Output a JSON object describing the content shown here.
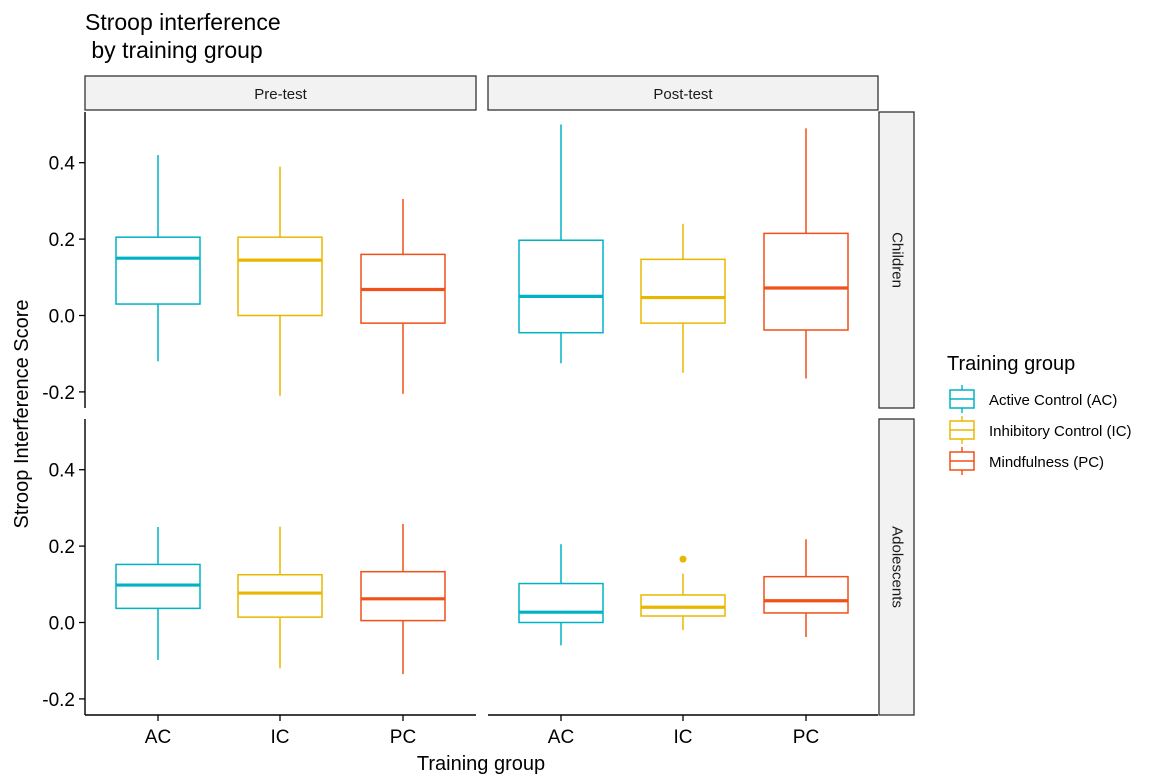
{
  "chart_data": {
    "type": "boxplot",
    "title": "Stroop interference\n by training group",
    "xlabel": "Training group",
    "ylabel": "Stroop Interference Score",
    "ylim": [
      -0.235,
      0.535
    ],
    "yticks": [
      -0.2,
      0.0,
      0.2,
      0.4
    ],
    "ytick_labels": [
      "-0.2",
      "0.0",
      "0.2",
      "0.4"
    ],
    "categories": [
      "AC",
      "IC",
      "PC"
    ],
    "columns": [
      "Pre-test",
      "Post-test"
    ],
    "rows": [
      "Children",
      "Adolescents"
    ],
    "legend": {
      "title": "Training group",
      "position": "right",
      "entries": [
        "Active Control (AC)",
        "Inhibitory Control (IC)",
        "Mindfulness (PC)"
      ]
    },
    "colors": {
      "AC": "#00b2c4",
      "IC": "#e8b800",
      "PC": "#f05019"
    },
    "grid": false,
    "panels": [
      {
        "row": "Children",
        "column": "Pre-test",
        "boxes": [
          {
            "group": "AC",
            "min": -0.12,
            "q1": 0.03,
            "median": 0.15,
            "q3": 0.205,
            "max": 0.42,
            "outliers": []
          },
          {
            "group": "IC",
            "min": -0.21,
            "q1": 0.0,
            "median": 0.145,
            "q3": 0.205,
            "max": 0.39,
            "outliers": []
          },
          {
            "group": "PC",
            "min": -0.205,
            "q1": -0.02,
            "median": 0.068,
            "q3": 0.16,
            "max": 0.305,
            "outliers": []
          }
        ]
      },
      {
        "row": "Children",
        "column": "Post-test",
        "boxes": [
          {
            "group": "AC",
            "min": -0.125,
            "q1": -0.045,
            "median": 0.05,
            "q3": 0.197,
            "max": 0.5,
            "outliers": []
          },
          {
            "group": "IC",
            "min": -0.15,
            "q1": -0.02,
            "median": 0.047,
            "q3": 0.147,
            "max": 0.24,
            "outliers": []
          },
          {
            "group": "PC",
            "min": -0.165,
            "q1": -0.038,
            "median": 0.072,
            "q3": 0.215,
            "max": 0.49,
            "outliers": []
          }
        ]
      },
      {
        "row": "Adolescents",
        "column": "Pre-test",
        "boxes": [
          {
            "group": "AC",
            "min": -0.098,
            "q1": 0.037,
            "median": 0.098,
            "q3": 0.152,
            "max": 0.25,
            "outliers": []
          },
          {
            "group": "IC",
            "min": -0.12,
            "q1": 0.014,
            "median": 0.077,
            "q3": 0.125,
            "max": 0.251,
            "outliers": []
          },
          {
            "group": "PC",
            "min": -0.135,
            "q1": 0.005,
            "median": 0.062,
            "q3": 0.133,
            "max": 0.258,
            "outliers": []
          }
        ]
      },
      {
        "row": "Adolescents",
        "column": "Post-test",
        "boxes": [
          {
            "group": "AC",
            "min": -0.06,
            "q1": 0.0,
            "median": 0.027,
            "q3": 0.102,
            "max": 0.205,
            "outliers": []
          },
          {
            "group": "IC",
            "min": -0.02,
            "q1": 0.017,
            "median": 0.04,
            "q3": 0.072,
            "max": 0.128,
            "outliers": [
              0.166
            ]
          },
          {
            "group": "PC",
            "min": -0.038,
            "q1": 0.025,
            "median": 0.057,
            "q3": 0.12,
            "max": 0.218,
            "outliers": []
          }
        ]
      }
    ]
  }
}
